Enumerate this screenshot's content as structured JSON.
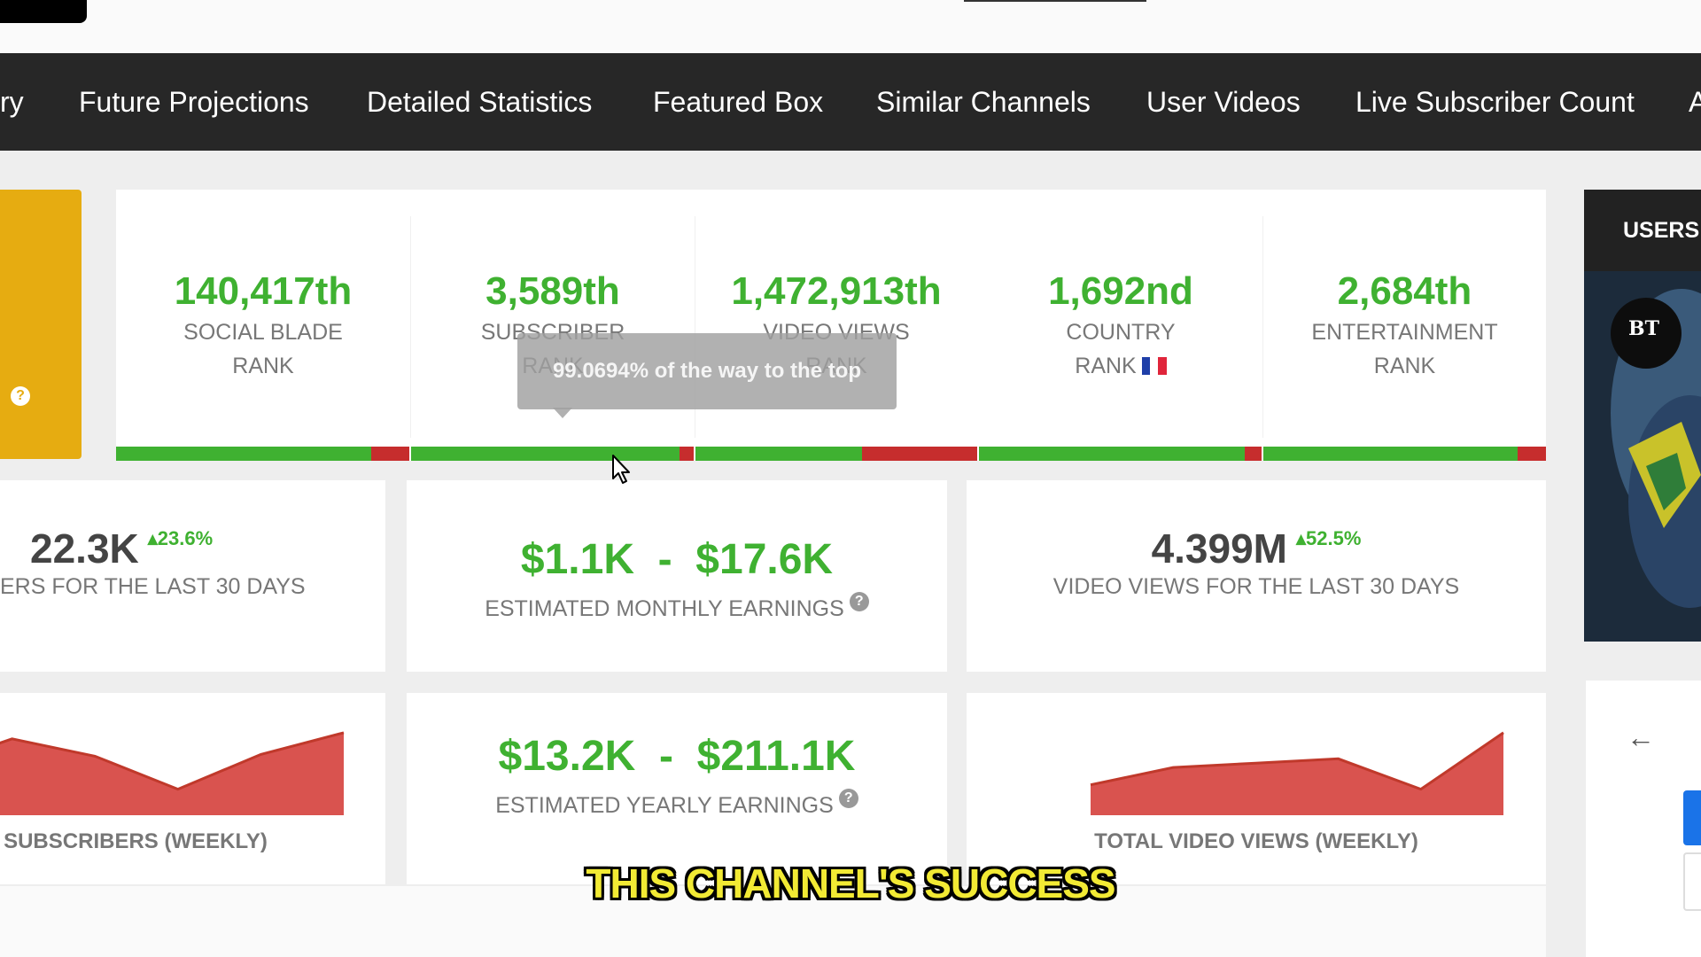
{
  "nav": {
    "items": [
      {
        "label": "ry"
      },
      {
        "label": "Future Projections"
      },
      {
        "label": "Detailed Statistics"
      },
      {
        "label": "Featured Box"
      },
      {
        "label": "Similar Channels"
      },
      {
        "label": "User Videos"
      },
      {
        "label": "Live Subscriber Count"
      },
      {
        "label": "A"
      }
    ]
  },
  "ranks": [
    {
      "value": "140,417th",
      "label_line1": "SOCIAL BLADE",
      "label_line2": "RANK",
      "green_fraction": 0.87
    },
    {
      "value": "3,589th",
      "label_line1": "SUBSCRIBER",
      "label_line2": "RANK",
      "green_fraction": 0.95
    },
    {
      "value": "1,472,913th",
      "label_line1": "VIDEO VIEWS",
      "label_line2": "RANK",
      "green_fraction": 0.59
    },
    {
      "value": "1,692nd",
      "label_line1": "COUNTRY",
      "label_line2": "RANK",
      "green_fraction": 0.94
    },
    {
      "value": "2,684th",
      "label_line1": "ENTERTAINMENT",
      "label_line2": "RANK",
      "green_fraction": 0.9
    }
  ],
  "tooltip": {
    "text": "99.0694% of the way to the top"
  },
  "stats": {
    "subscribers_30d": {
      "value": "22.3K",
      "change": "23.6%",
      "label": "ERS FOR THE LAST 30 DAYS"
    },
    "monthly_earnings": {
      "value": "$1.1K  -  $17.6K",
      "label": "ESTIMATED MONTHLY EARNINGS"
    },
    "views_30d": {
      "value": "4.399M",
      "change": "52.5%",
      "label": "VIDEO VIEWS FOR THE LAST 30 DAYS"
    },
    "yearly_earnings": {
      "value": "$13.2K  -  $211.1K",
      "label": "ESTIMATED YEARLY EARNINGS"
    }
  },
  "charts": {
    "subscribers_weekly": {
      "label": "SUBSCRIBERS (WEEKLY)",
      "values": [
        0.55,
        0.88,
        0.68,
        0.3,
        0.7,
        0.95
      ]
    },
    "views_weekly": {
      "label": "TOTAL VIDEO VIEWS (WEEKLY)",
      "values": [
        0.35,
        0.55,
        0.6,
        0.65,
        0.3,
        0.95
      ]
    }
  },
  "sidebar": {
    "users_label": "USERS",
    "thumb_text": "BT",
    "back_icon": "arrow-left-icon"
  },
  "caption": {
    "text": "THIS CHANNEL'S SUCCESS"
  },
  "colors": {
    "green": "#3fb131",
    "red": "#c62d2d",
    "gold": "#e6ac11",
    "nav": "#272727",
    "chart_fill": "#d9534f"
  }
}
